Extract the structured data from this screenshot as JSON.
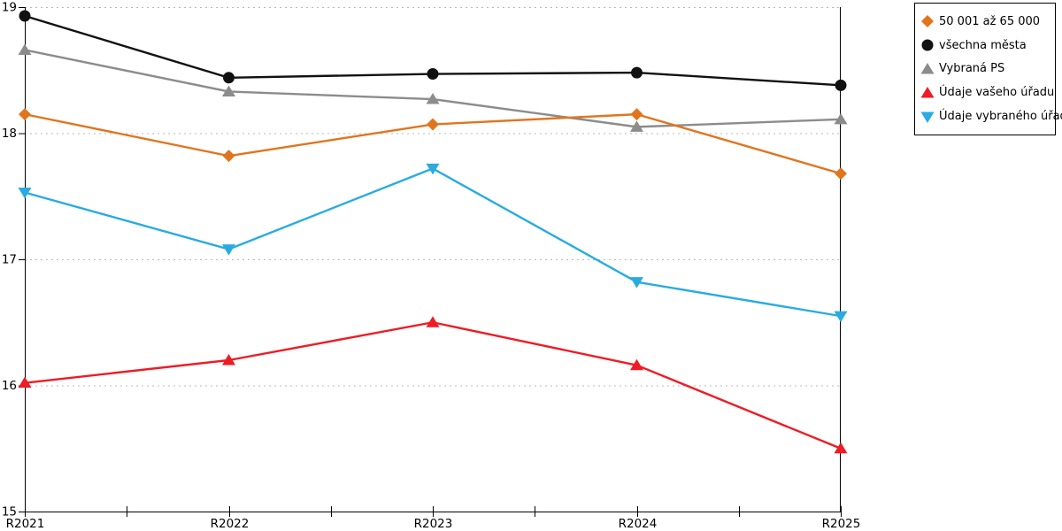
{
  "chart_data": {
    "type": "line",
    "title": "",
    "xlabel": "",
    "ylabel": "",
    "categories": [
      "R2021",
      "R2022",
      "R2023",
      "R2024",
      "R2025"
    ],
    "ylim": [
      15,
      19
    ],
    "yticks": [
      "15",
      "16",
      "17",
      "18",
      "19"
    ],
    "grid": "horizontal-dotted",
    "grid_color": "#b8b8b8",
    "axis_color": "#000000",
    "legend_position": "outside-top-right",
    "x_minor_ticks": "halfway between categories",
    "series": [
      {
        "name": "50 001 až 65 000",
        "color": "#E1751E",
        "marker": "diamond",
        "values": [
          18.15,
          17.82,
          18.07,
          18.15,
          17.68
        ]
      },
      {
        "name": "všechna města",
        "color": "#111111",
        "marker": "circle",
        "values": [
          18.93,
          18.44,
          18.47,
          18.48,
          18.38
        ]
      },
      {
        "name": "Vybraná PS",
        "color": "#8C8C8C",
        "marker": "triangle-up",
        "values": [
          18.66,
          18.33,
          18.27,
          18.05,
          18.11
        ]
      },
      {
        "name": "Údaje vašeho úřadu",
        "color": "#EE1C25",
        "marker": "triangle-up",
        "values": [
          16.02,
          16.2,
          16.5,
          16.16,
          15.5
        ]
      },
      {
        "name": "Údaje vybraného úřadu",
        "color": "#29ABE2",
        "marker": "triangle-down",
        "values": [
          17.53,
          17.08,
          17.72,
          16.82,
          16.55
        ]
      }
    ],
    "draw_order": [
      2,
      1,
      0,
      3,
      4
    ]
  }
}
